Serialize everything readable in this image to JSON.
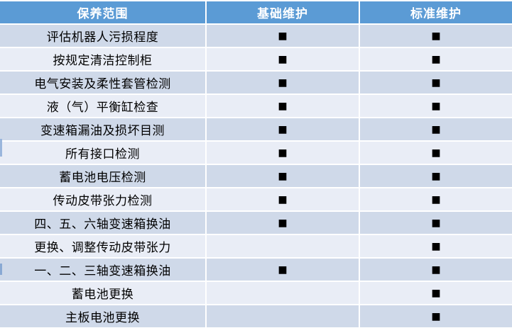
{
  "table": {
    "headers": [
      "保养范围",
      "基础维护",
      "标准维护"
    ],
    "check_glyph": "■",
    "rows": [
      {
        "label": "评估机器人污损程度",
        "basic": true,
        "standard": true
      },
      {
        "label": "按规定清洁控制柜",
        "basic": true,
        "standard": true
      },
      {
        "label": "电气安装及柔性套管检测",
        "basic": true,
        "standard": true
      },
      {
        "label": "液（气）平衡缸检查",
        "basic": true,
        "standard": true
      },
      {
        "label": "变速箱漏油及损坏目测",
        "basic": true,
        "standard": true
      },
      {
        "label": "所有接口检测",
        "basic": true,
        "standard": true
      },
      {
        "label": "蓄电池电压检测",
        "basic": true,
        "standard": true
      },
      {
        "label": "传动皮带张力检测",
        "basic": true,
        "standard": true
      },
      {
        "label": "四、五、六轴变速箱换油",
        "basic": true,
        "standard": true
      },
      {
        "label": "更换、调整传动皮带张力",
        "basic": false,
        "standard": true
      },
      {
        "label": "一、二、三轴变速箱换油",
        "basic": true,
        "standard": true
      },
      {
        "label": "蓄电池更换",
        "basic": false,
        "standard": true
      },
      {
        "label": "主板电池更换",
        "basic": false,
        "standard": true
      }
    ]
  },
  "colors": {
    "header_bg": "#5B9BD5",
    "header_text": "#FFFFFF",
    "row_dark": "#CFD9E9",
    "row_light": "#E9EDF6",
    "check": "#000000",
    "separator": "#FFFFFF"
  }
}
